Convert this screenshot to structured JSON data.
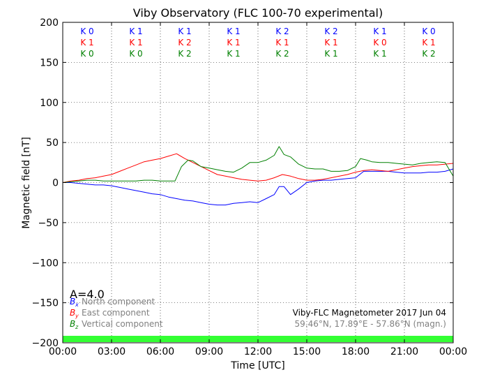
{
  "chart_data": {
    "type": "line",
    "title": "Viby Observatory (FLC 100-70 experimental)",
    "xlabel": "Time [UTC]",
    "ylabel": "Magnetic field [nT]",
    "xlim": [
      0,
      24
    ],
    "ylim": [
      -200,
      200
    ],
    "x_ticks": [
      0,
      3,
      6,
      9,
      12,
      15,
      18,
      21,
      24
    ],
    "x_tick_labels": [
      "00:00",
      "03:00",
      "06:00",
      "09:00",
      "12:00",
      "15:00",
      "18:00",
      "21:00",
      "00:00"
    ],
    "y_ticks": [
      -200,
      -150,
      -100,
      -50,
      0,
      50,
      100,
      150,
      200
    ],
    "y_tick_labels": [
      "−200",
      "−150",
      "−100",
      "−50",
      "0",
      "50",
      "100",
      "150",
      "200"
    ],
    "grid": true,
    "colors": {
      "north": "#0000ff",
      "east": "#ff0000",
      "vertical": "#008000",
      "band": "#33ff33",
      "legend_text": "#808080"
    },
    "k_indices": {
      "north": [
        "K 0",
        "K 1",
        "K 1",
        "K 1",
        "K 2",
        "K 2",
        "K 1",
        "K 0"
      ],
      "east": [
        "K 1",
        "K 1",
        "K 2",
        "K 1",
        "K 1",
        "K 1",
        "K 0",
        "K 1"
      ],
      "vertical": [
        "K 0",
        "K 0",
        "K 2",
        "K 1",
        "K 2",
        "K 1",
        "K 1",
        "K 2"
      ]
    },
    "a_index": "A=4.0",
    "legend": [
      {
        "symbol": "B",
        "sub": "x",
        "label": "North component"
      },
      {
        "symbol": "B",
        "sub": "y",
        "label": "East component"
      },
      {
        "symbol": "B",
        "sub": "z",
        "label": "Vertical component"
      }
    ],
    "annotation_main": "Viby-FLC Magnetometer 2017 Jun 04",
    "annotation_sub": "59.46°N, 17.89°E - 57.86°N (magn.)",
    "series": [
      {
        "key": "north",
        "x": [
          0,
          0.5,
          1,
          1.5,
          2,
          2.5,
          3,
          3.5,
          4,
          4.5,
          5,
          5.5,
          6,
          6.5,
          7,
          7.5,
          8,
          8.5,
          9,
          9.5,
          10,
          10.5,
          11,
          11.5,
          12,
          12.5,
          13,
          13.3,
          13.6,
          14,
          14.5,
          15,
          15.5,
          16,
          16.5,
          17,
          17.5,
          18,
          18.5,
          19,
          19.5,
          20,
          20.5,
          21,
          21.5,
          22,
          22.5,
          23,
          23.5,
          24
        ],
        "y": [
          0,
          0,
          -1,
          -2,
          -3,
          -3,
          -4,
          -6,
          -8,
          -10,
          -12,
          -14,
          -15,
          -18,
          -20,
          -22,
          -23,
          -25,
          -27,
          -28,
          -28,
          -26,
          -25,
          -24,
          -25,
          -20,
          -15,
          -5,
          -5,
          -15,
          -8,
          0,
          2,
          3,
          3,
          4,
          5,
          6,
          14,
          14,
          14,
          14,
          13,
          12,
          12,
          12,
          13,
          13,
          14,
          17
        ]
      },
      {
        "key": "east",
        "x": [
          0,
          0.5,
          1,
          1.5,
          2,
          2.5,
          3,
          3.5,
          4,
          4.5,
          5,
          5.5,
          6,
          6.5,
          7,
          7.5,
          8,
          8.5,
          9,
          9.5,
          10,
          10.5,
          11,
          11.5,
          12,
          12.5,
          13,
          13.5,
          14,
          14.5,
          15,
          15.5,
          16,
          16.5,
          17,
          17.5,
          18,
          18.5,
          19,
          19.5,
          20,
          20.5,
          21,
          21.5,
          22,
          22.5,
          23,
          23.5,
          24
        ],
        "y": [
          0,
          2,
          3,
          5,
          6,
          8,
          10,
          14,
          18,
          22,
          26,
          28,
          30,
          33,
          36,
          30,
          25,
          20,
          15,
          10,
          8,
          6,
          4,
          3,
          2,
          3,
          6,
          10,
          8,
          5,
          3,
          3,
          4,
          6,
          8,
          10,
          13,
          15,
          16,
          15,
          14,
          16,
          18,
          20,
          21,
          22,
          22,
          23,
          24
        ]
      },
      {
        "key": "vertical",
        "x": [
          0,
          0.5,
          1,
          1.5,
          2,
          2.5,
          3,
          3.5,
          4,
          4.5,
          5,
          5.5,
          6,
          6.5,
          6.9,
          7.3,
          7.7,
          8,
          8.5,
          9,
          9.5,
          10,
          10.5,
          11,
          11.5,
          12,
          12.5,
          13,
          13.3,
          13.6,
          14,
          14.5,
          15,
          15.5,
          16,
          16.5,
          17,
          17.5,
          18,
          18.3,
          18.7,
          19,
          19.5,
          20,
          20.5,
          21,
          21.5,
          22,
          22.5,
          23,
          23.5,
          24
        ],
        "y": [
          0,
          1,
          2,
          3,
          3,
          2,
          2,
          2,
          2,
          2,
          3,
          3,
          2,
          2,
          2,
          20,
          28,
          27,
          20,
          18,
          16,
          14,
          13,
          18,
          25,
          25,
          28,
          34,
          45,
          35,
          32,
          23,
          18,
          17,
          17,
          14,
          14,
          15,
          20,
          30,
          28,
          26,
          25,
          25,
          24,
          23,
          22,
          24,
          25,
          26,
          25,
          8
        ]
      }
    ]
  }
}
